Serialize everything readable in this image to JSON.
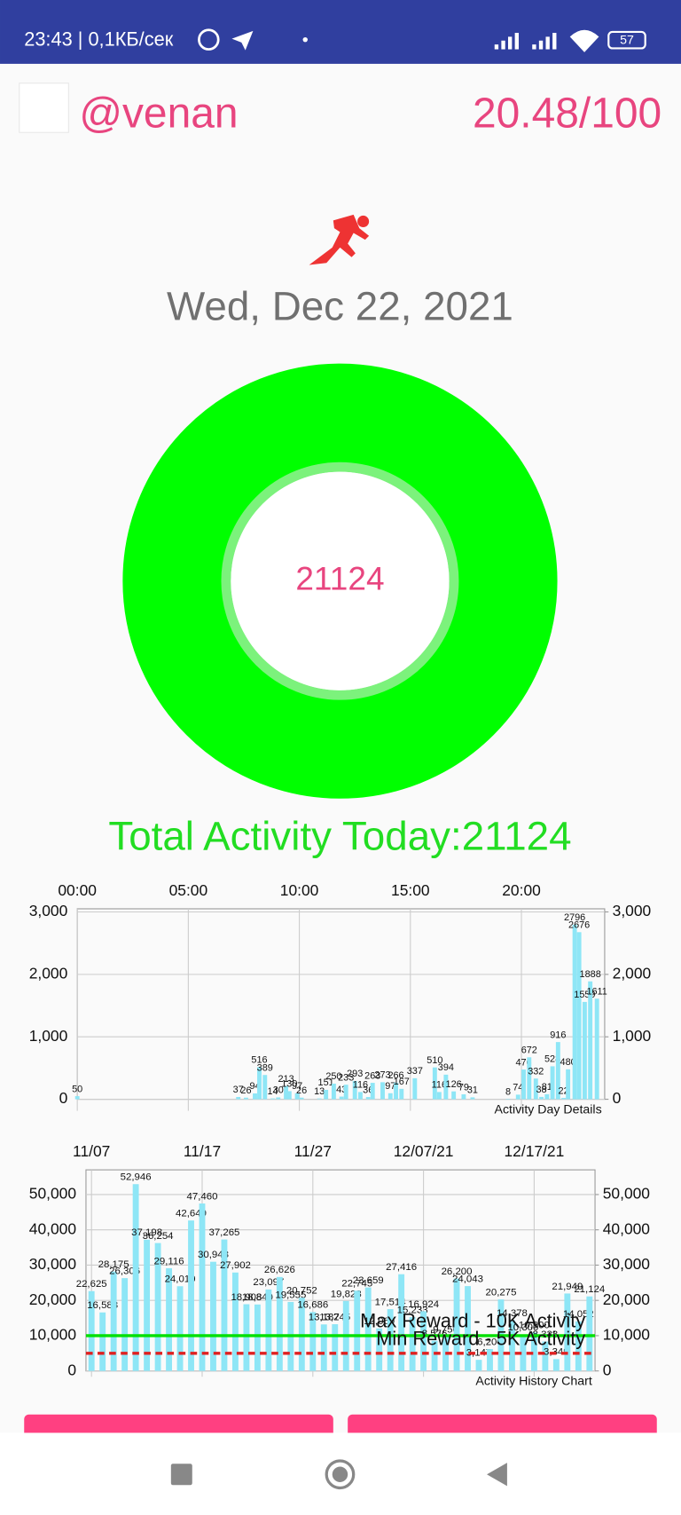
{
  "status_bar": {
    "time": "23:43 | 0,1КБ/сек",
    "battery": "57"
  },
  "header": {
    "username": "@venan",
    "score": "20.48/100"
  },
  "date": "Wed, Dec 22, 2021",
  "today_value": "21124",
  "total_text": "Total Activity Today:21124",
  "chart_data": [
    {
      "type": "bar",
      "color": "#8ee6f6",
      "grid": true,
      "annotation": "Activity Day Details",
      "x": [
        0,
        7.25,
        7.6,
        8.0,
        8.2,
        8.45,
        8.8,
        9.05,
        9.4,
        9.55,
        9.9,
        10.1,
        10.9,
        11.2,
        11.55,
        11.9,
        12.1,
        12.5,
        12.75,
        13.1,
        13.3,
        13.75,
        14.1,
        14.35,
        14.6,
        15.2,
        16.1,
        16.3,
        16.6,
        16.95,
        17.4,
        17.8,
        19.4,
        19.85,
        20.1,
        20.35,
        20.65,
        20.9,
        21.15,
        21.4,
        21.65,
        21.9,
        22.1,
        22.4,
        22.6,
        22.85,
        23.1,
        23.4
      ],
      "values": [
        50,
        37,
        26,
        94,
        516,
        389,
        14,
        30,
        213,
        130,
        97,
        26,
        13,
        151,
        250,
        43,
        233,
        293,
        116,
        36,
        263,
        273,
        97,
        266,
        167,
        337,
        510,
        116,
        394,
        126,
        79,
        31,
        8,
        74,
        476,
        672,
        332,
        38,
        81,
        528,
        916,
        22,
        480,
        2796,
        2676,
        1559,
        1888,
        1611
      ],
      "xlim": [
        0,
        23.75
      ],
      "xticks": [
        {
          "value": 0,
          "label": "00:00"
        },
        {
          "value": 5,
          "label": "05:00"
        },
        {
          "value": 10,
          "label": "10:00"
        },
        {
          "value": 15,
          "label": "15:00"
        },
        {
          "value": 20,
          "label": "20:00"
        }
      ],
      "ylim": [
        0,
        3050
      ],
      "yticks": [
        0,
        {
          "value": 1000,
          "label": "1,000"
        },
        {
          "value": 2000,
          "label": "2,000"
        },
        {
          "value": 3000,
          "label": "3,000"
        }
      ],
      "y2lim": [
        0,
        3050
      ],
      "y2ticks": [
        0,
        {
          "value": 1000,
          "label": "1,000"
        },
        {
          "value": 2000,
          "label": "2,000"
        },
        {
          "value": 3000,
          "label": "3,000"
        }
      ]
    },
    {
      "type": "bar",
      "color": "#8ee6f6",
      "grid": true,
      "annotation": "Activity History Chart",
      "categories": [
        "11/07",
        null,
        null,
        null,
        null,
        null,
        null,
        null,
        null,
        null,
        "11/17",
        null,
        null,
        null,
        null,
        null,
        null,
        null,
        null,
        null,
        "11/27",
        null,
        null,
        null,
        null,
        null,
        null,
        null,
        null,
        null,
        "12/07/21",
        null,
        null,
        null,
        null,
        null,
        null,
        null,
        null,
        null,
        "12/17/21",
        null,
        null,
        null,
        null,
        null
      ],
      "values": [
        22625,
        16588,
        28175,
        26306,
        52946,
        37198,
        36254,
        29116,
        24010,
        42649,
        47460,
        30948,
        37265,
        27902,
        18908,
        18840,
        23097,
        26626,
        19555,
        20752,
        16686,
        13187,
        13245,
        19823,
        22745,
        23659,
        12060,
        17514,
        27416,
        15233,
        16924,
        8576,
        9756,
        26200,
        24043,
        3147,
        6200,
        20275,
        14378,
        10300,
        10900,
        8338,
        3349,
        21949,
        14052,
        21124
      ],
      "value_labels": [
        "22,625",
        "16,588",
        "28,175",
        "26,306",
        "52,946",
        "37,198",
        "36,254",
        "29,116",
        "24,010",
        "42,649",
        "47,460",
        "30,948",
        "37,265",
        "27,902",
        "18,908",
        "18,840",
        "23,097",
        "26,626",
        "19,555",
        "20,752",
        "16,686",
        "13,187",
        "13,245",
        "19,823",
        "22,745",
        "23,659",
        "12,060",
        "17,514",
        "27,416",
        "15,233",
        "16,924",
        "8,576",
        "9,756",
        "26,200",
        "24,043",
        "3,147",
        "6,200",
        "20,275",
        "14,378",
        "10,300",
        "10,900",
        "8,338",
        "3,349",
        "21,949",
        "14,052",
        "21,124"
      ],
      "ylim": [
        0,
        57000
      ],
      "yticks": [
        0,
        {
          "value": 10000,
          "label": "10,000"
        },
        {
          "value": 20000,
          "label": "20,000"
        },
        {
          "value": 30000,
          "label": "30,000"
        },
        {
          "value": 40000,
          "label": "40,000"
        },
        {
          "value": 50000,
          "label": "50,000"
        }
      ],
      "y2lim": [
        0,
        57000
      ],
      "y2ticks": [
        0,
        {
          "value": 10000,
          "label": "10,000"
        },
        {
          "value": 20000,
          "label": "20,000"
        },
        {
          "value": 30000,
          "label": "30,000"
        },
        {
          "value": 40000,
          "label": "40,000"
        },
        {
          "value": 50000,
          "label": "50,000"
        }
      ],
      "reference_lines": [
        {
          "label": "Max Reward - 10K Activity",
          "value": 10000,
          "color": "#00e000",
          "style": "solid"
        },
        {
          "label": "Min Reward - 5K Activity",
          "value": 5000,
          "color": "#e02020",
          "style": "dashed"
        }
      ]
    }
  ]
}
